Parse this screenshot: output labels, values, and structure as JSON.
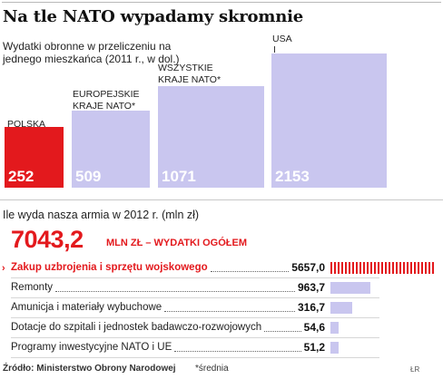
{
  "title": "Na tle NATO wypadamy skromnie",
  "subtitle": "Wydatki obronne w przeliczeniu na jednego mieszkańca (2011 r., w dol.)",
  "chart_data": [
    {
      "type": "bar",
      "title": "Wydatki obronne w przeliczeniu na jednego mieszkańca (2011 r., w dol.)",
      "categories": [
        "POLSKA",
        "EUROPEJSKIE KRAJE NATO*",
        "WSZYSTKIE KRAJE NATO*",
        "USA"
      ],
      "values": [
        252,
        509,
        1071,
        2153
      ],
      "value_labels": [
        "252",
        "509",
        "1071",
        "2153"
      ],
      "colors": [
        "#e3191d",
        "#c9c6ef",
        "#c9c6ef",
        "#c9c6ef"
      ],
      "ylim": [
        0,
        2153
      ],
      "legend": "none",
      "grid": false
    },
    {
      "type": "bar",
      "orientation": "horizontal",
      "title": "Ile wyda nasza armia w 2012 r. (mln zł)",
      "total": "7043,2",
      "total_label": "MLN ZŁ – WYDATKI OGÓŁEM",
      "categories": [
        "Zakup uzbrojenia i sprzętu wojskowego",
        "Remonty",
        "Amunicja i materiały wybuchowe",
        "Dotacje do szpitali i jednostek badawczo-rozwojowych",
        "Programy inwestycyjne NATO i UE"
      ],
      "values": [
        5657.0,
        963.7,
        316.7,
        54.6,
        51.2
      ],
      "value_labels": [
        "5657,0",
        "963,7",
        "316,7",
        "54,6",
        "51,2"
      ],
      "highlight_index": 0,
      "colors": {
        "highlight": "#e3191d",
        "default": "#c9c6ef"
      },
      "xlim": [
        0,
        5657.0
      ]
    }
  ],
  "spend_title": "Ile wyda nasza armia w 2012 r. (mln zł)",
  "total_value": "7043,2",
  "total_label": "MLN ZŁ – WYDATKI OGÓŁEM",
  "highlight_marker": "›",
  "source": "Źródło: Ministerstwo Obrony Narodowej",
  "note": "*średnia",
  "initials": "ŁR"
}
